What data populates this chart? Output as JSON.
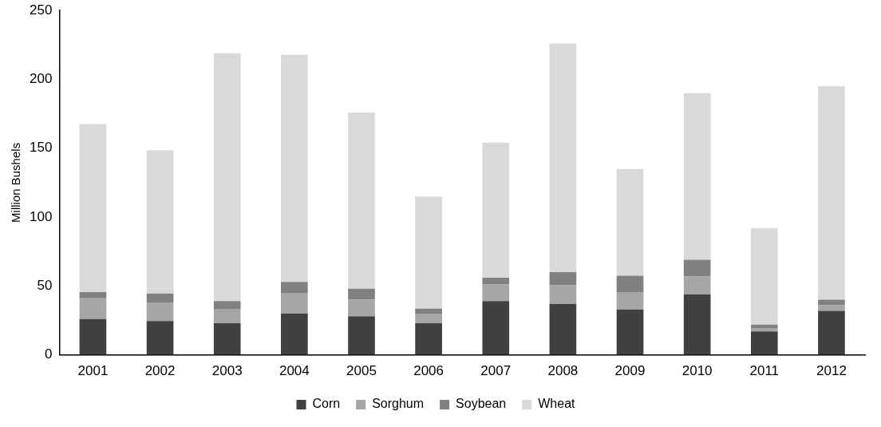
{
  "chart_data": {
    "type": "bar",
    "stacked": true,
    "ylabel": "Million Bushels",
    "categories": [
      "2001",
      "2002",
      "2003",
      "2004",
      "2005",
      "2006",
      "2007",
      "2008",
      "2009",
      "2010",
      "2011",
      "2012"
    ],
    "series": [
      {
        "name": "Corn",
        "color": "#404040",
        "values": [
          26,
          24.5,
          23,
          30,
          28,
          23,
          39,
          37,
          33,
          44,
          17,
          32
        ]
      },
      {
        "name": "Sorghum",
        "color": "#a6a6a6",
        "values": [
          15,
          13.5,
          10,
          14.5,
          12,
          6.5,
          12,
          13.5,
          12.5,
          13,
          2,
          4
        ]
      },
      {
        "name": "Soybean",
        "color": "#808080",
        "values": [
          4.5,
          6.5,
          6,
          8.5,
          8,
          4,
          5,
          9.5,
          12,
          12,
          3,
          4
        ]
      },
      {
        "name": "Wheat",
        "color": "#d9d9d9",
        "values": [
          122,
          104,
          180,
          165,
          128,
          81.5,
          98,
          166,
          77.5,
          121,
          70,
          155
        ]
      }
    ],
    "ylim": [
      0,
      250
    ],
    "yticks": [
      0,
      50,
      100,
      150,
      200,
      250
    ],
    "grid": false,
    "legend": "bottom"
  }
}
